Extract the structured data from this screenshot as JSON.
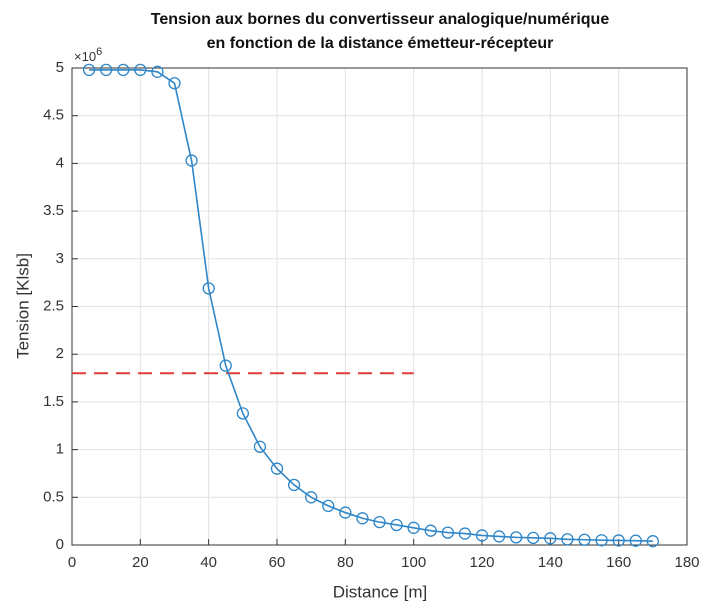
{
  "chart_data": {
    "type": "line",
    "title": [
      "Tension aux bornes du convertisseur analogique/numérique",
      "en fonction de la distance émetteur-récepteur"
    ],
    "x_label": "Distance [m]",
    "y_label": "Tension [Klsb]",
    "y_multiplier": {
      "base": "×10",
      "exponent": "6"
    },
    "x": [
      5,
      10,
      15,
      20,
      25,
      30,
      35,
      40,
      45,
      50,
      55,
      60,
      65,
      70,
      75,
      80,
      85,
      90,
      95,
      100,
      105,
      110,
      115,
      120,
      125,
      130,
      135,
      140,
      145,
      150,
      155,
      160,
      165,
      170
    ],
    "series": [
      {
        "color": "#2e86c8",
        "marker": "circle",
        "values": [
          4.98,
          4.98,
          4.98,
          4.98,
          4.96,
          4.84,
          4.03,
          2.69,
          1.88,
          1.38,
          1.03,
          0.8,
          0.63,
          0.5,
          0.41,
          0.34,
          0.28,
          0.24,
          0.21,
          0.18,
          0.15,
          0.13,
          0.12,
          0.1,
          0.09,
          0.08,
          0.075,
          0.07,
          0.06,
          0.055,
          0.05,
          0.048,
          0.045,
          0.04
        ]
      }
    ],
    "threshold": {
      "y": 1.8,
      "x": [
        0,
        100
      ],
      "color": "#e03a3a",
      "dashed": true
    },
    "xlim": [
      0,
      180
    ],
    "xticks": [
      0,
      20,
      40,
      60,
      80,
      100,
      120,
      140,
      160,
      180
    ],
    "ylim": [
      0,
      5
    ],
    "yticks": [
      0,
      0.5,
      1,
      1.5,
      2,
      2.5,
      3,
      3.5,
      4,
      4.5,
      5
    ],
    "grid": true
  }
}
